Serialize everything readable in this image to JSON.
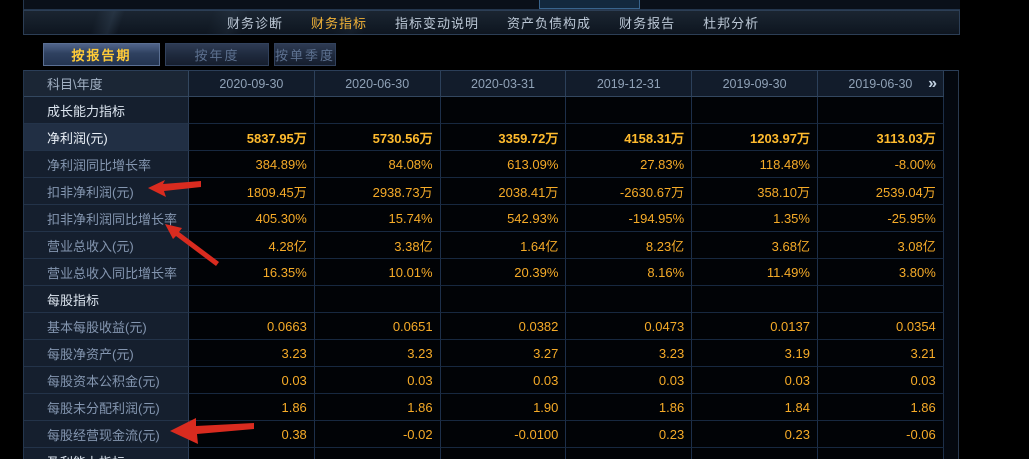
{
  "nav": {
    "tabs": [
      {
        "label": "财务诊断",
        "active": false
      },
      {
        "label": "财务指标",
        "active": true
      },
      {
        "label": "指标变动说明",
        "active": false
      },
      {
        "label": "资产负债构成",
        "active": false
      },
      {
        "label": "财务报告",
        "active": false
      },
      {
        "label": "杜邦分析",
        "active": false
      }
    ]
  },
  "period_tabs": [
    {
      "label": "按报告期",
      "active": true
    },
    {
      "label": "按年度",
      "active": false
    },
    {
      "label": "按单季度",
      "active": false
    }
  ],
  "table": {
    "corner_header": "科目\\年度",
    "columns": [
      "2020-09-30",
      "2020-06-30",
      "2020-03-31",
      "2019-12-31",
      "2019-09-30",
      "2019-06-30"
    ],
    "more_columns_icon": "»",
    "rows": [
      {
        "kind": "section",
        "label": "成长能力指标",
        "values": []
      },
      {
        "kind": "data",
        "label": "净利润(元)",
        "selected": true,
        "values": [
          "5837.95万",
          "5730.56万",
          "3359.72万",
          "4158.31万",
          "1203.97万",
          "3113.03万"
        ]
      },
      {
        "kind": "data",
        "label": "净利润同比增长率",
        "values": [
          "384.89%",
          "84.08%",
          "613.09%",
          "27.83%",
          "118.48%",
          "-8.00%"
        ]
      },
      {
        "kind": "data",
        "label": "扣非净利润(元)",
        "values": [
          "1809.45万",
          "2938.73万",
          "2038.41万",
          "-2630.67万",
          "358.10万",
          "2539.04万"
        ]
      },
      {
        "kind": "data",
        "label": "扣非净利润同比增长率",
        "values": [
          "405.30%",
          "15.74%",
          "542.93%",
          "-194.95%",
          "1.35%",
          "-25.95%"
        ]
      },
      {
        "kind": "data",
        "label": "营业总收入(元)",
        "values": [
          "4.28亿",
          "3.38亿",
          "1.64亿",
          "8.23亿",
          "3.68亿",
          "3.08亿"
        ]
      },
      {
        "kind": "data",
        "label": "营业总收入同比增长率",
        "values": [
          "16.35%",
          "10.01%",
          "20.39%",
          "8.16%",
          "11.49%",
          "3.80%"
        ]
      },
      {
        "kind": "section",
        "label": "每股指标",
        "values": []
      },
      {
        "kind": "data",
        "label": "基本每股收益(元)",
        "values": [
          "0.0663",
          "0.0651",
          "0.0382",
          "0.0473",
          "0.0137",
          "0.0354"
        ]
      },
      {
        "kind": "data",
        "label": "每股净资产(元)",
        "values": [
          "3.23",
          "3.23",
          "3.27",
          "3.23",
          "3.19",
          "3.21"
        ]
      },
      {
        "kind": "data",
        "label": "每股资本公积金(元)",
        "values": [
          "0.03",
          "0.03",
          "0.03",
          "0.03",
          "0.03",
          "0.03"
        ]
      },
      {
        "kind": "data",
        "label": "每股未分配利润(元)",
        "values": [
          "1.86",
          "1.86",
          "1.90",
          "1.86",
          "1.84",
          "1.86"
        ]
      },
      {
        "kind": "data",
        "label": "每股经营现金流(元)",
        "values": [
          "0.38",
          "-0.02",
          "-0.0100",
          "0.23",
          "0.23",
          "-0.06"
        ]
      },
      {
        "kind": "section",
        "label": "盈利能力指标",
        "partial": true,
        "values": []
      }
    ]
  },
  "annotations": {
    "arrow_color": "#d92b1f",
    "arrows_point_to": [
      "扣非净利润(元)",
      "扣非净利润同比增长率",
      "每股经营现金流(元)"
    ]
  },
  "colors": {
    "value_text": "#f6ab28",
    "selected_value_text": "#ffbb2e",
    "nav_active_text": "#f2b338",
    "period_active_text": "#ffcb38",
    "section_label_text": "#dde6f0",
    "label_text": "#8496b0",
    "panel_border": "#2c3e55",
    "background": "#000000"
  }
}
